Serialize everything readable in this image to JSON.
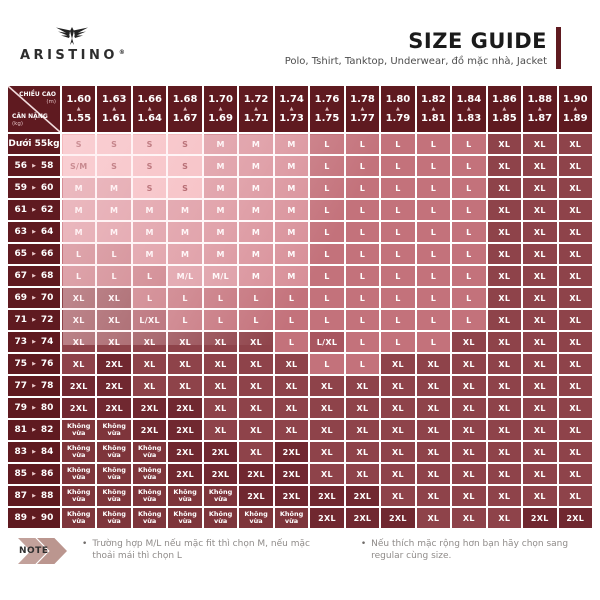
{
  "header": {
    "brand": "ARISTINO",
    "registered_mark": "®",
    "title": "SIZE GUIDE",
    "subtitle": "Polo, Tshirt, Tanktop, Underwear, đồ mặc nhà, Jacket"
  },
  "chart_data": {
    "type": "table",
    "title": "SIZE GUIDE",
    "corner": {
      "top_label": "CHIỀU CAO",
      "top_unit": "(m)",
      "bottom_label": "CÂN NẶNG",
      "bottom_unit": "(kg)"
    },
    "columns": [
      {
        "max": "1.60",
        "min": "1.55"
      },
      {
        "max": "1.63",
        "min": "1.61"
      },
      {
        "max": "1.66",
        "min": "1.64"
      },
      {
        "max": "1.68",
        "min": "1.67"
      },
      {
        "max": "1.70",
        "min": "1.69"
      },
      {
        "max": "1.72",
        "min": "1.71"
      },
      {
        "max": "1.74",
        "min": "1.73"
      },
      {
        "max": "1.76",
        "min": "1.75"
      },
      {
        "max": "1.78",
        "min": "1.77"
      },
      {
        "max": "1.80",
        "min": "1.79"
      },
      {
        "max": "1.82",
        "min": "1.81"
      },
      {
        "max": "1.84",
        "min": "1.83"
      },
      {
        "max": "1.86",
        "min": "1.85"
      },
      {
        "max": "1.88",
        "min": "1.87"
      },
      {
        "max": "1.90",
        "min": "1.89"
      }
    ],
    "rows": [
      {
        "label": {
          "text": "Dưới 55kg"
        },
        "cells": [
          "S",
          "S",
          "S",
          "S",
          "M",
          "M",
          "M",
          "L",
          "L",
          "L",
          "L",
          "L",
          "XL",
          "XL",
          "XL"
        ]
      },
      {
        "label": {
          "from": "56",
          "to": "58"
        },
        "cells": [
          "S/M",
          "S",
          "S",
          "S",
          "M",
          "M",
          "M",
          "L",
          "L",
          "L",
          "L",
          "L",
          "XL",
          "XL",
          "XL"
        ]
      },
      {
        "label": {
          "from": "59",
          "to": "60"
        },
        "cells": [
          "M",
          "M",
          "S",
          "S",
          "M",
          "M",
          "M",
          "L",
          "L",
          "L",
          "L",
          "L",
          "XL",
          "XL",
          "XL"
        ]
      },
      {
        "label": {
          "from": "61",
          "to": "62"
        },
        "cells": [
          "M",
          "M",
          "M",
          "M",
          "M",
          "M",
          "M",
          "L",
          "L",
          "L",
          "L",
          "L",
          "XL",
          "XL",
          "XL"
        ]
      },
      {
        "label": {
          "from": "63",
          "to": "64"
        },
        "cells": [
          "M",
          "M",
          "M",
          "M",
          "M",
          "M",
          "M",
          "L",
          "L",
          "L",
          "L",
          "L",
          "XL",
          "XL",
          "XL"
        ]
      },
      {
        "label": {
          "from": "65",
          "to": "66"
        },
        "cells": [
          "L",
          "L",
          "M",
          "M",
          "M",
          "M",
          "M",
          "L",
          "L",
          "L",
          "L",
          "L",
          "XL",
          "XL",
          "XL"
        ]
      },
      {
        "label": {
          "from": "67",
          "to": "68"
        },
        "cells": [
          "L",
          "L",
          "L",
          "M/L",
          "M/L",
          "M",
          "M",
          "L",
          "L",
          "L",
          "L",
          "L",
          "XL",
          "XL",
          "XL"
        ]
      },
      {
        "label": {
          "from": "69",
          "to": "70"
        },
        "cells": [
          "XL",
          "XL",
          "L",
          "L",
          "L",
          "L",
          "L",
          "L",
          "L",
          "L",
          "L",
          "L",
          "XL",
          "XL",
          "XL"
        ]
      },
      {
        "label": {
          "from": "71",
          "to": "72"
        },
        "cells": [
          "XL",
          "XL",
          "L/XL",
          "L",
          "L",
          "L",
          "L",
          "L",
          "L",
          "L",
          "L",
          "L",
          "XL",
          "XL",
          "XL"
        ]
      },
      {
        "label": {
          "from": "73",
          "to": "74"
        },
        "cells": [
          "XL",
          "XL",
          "XL",
          "XL",
          "XL",
          "XL",
          "L",
          "L/XL",
          "L",
          "L",
          "L",
          "XL",
          "XL",
          "XL",
          "XL"
        ]
      },
      {
        "label": {
          "from": "75",
          "to": "76"
        },
        "cells": [
          "XL",
          "2XL",
          "XL",
          "XL",
          "XL",
          "XL",
          "XL",
          "L",
          "L",
          "XL",
          "XL",
          "XL",
          "XL",
          "XL",
          "XL"
        ]
      },
      {
        "label": {
          "from": "77",
          "to": "78"
        },
        "cells": [
          "2XL",
          "2XL",
          "XL",
          "XL",
          "XL",
          "XL",
          "XL",
          "XL",
          "XL",
          "XL",
          "XL",
          "XL",
          "XL",
          "XL",
          "XL"
        ]
      },
      {
        "label": {
          "from": "79",
          "to": "80"
        },
        "cells": [
          "2XL",
          "2XL",
          "2XL",
          "2XL",
          "XL",
          "XL",
          "XL",
          "XL",
          "XL",
          "XL",
          "XL",
          "XL",
          "XL",
          "XL",
          "XL"
        ]
      },
      {
        "label": {
          "from": "81",
          "to": "82"
        },
        "cells": [
          "KV",
          "KV",
          "2XL",
          "2XL",
          "XL",
          "XL",
          "XL",
          "XL",
          "XL",
          "XL",
          "XL",
          "XL",
          "XL",
          "XL",
          "XL"
        ]
      },
      {
        "label": {
          "from": "83",
          "to": "84"
        },
        "cells": [
          "KV",
          "KV",
          "KV",
          "2XL",
          "2XL",
          "XL",
          "2XL",
          "XL",
          "XL",
          "XL",
          "XL",
          "XL",
          "XL",
          "XL",
          "XL"
        ]
      },
      {
        "label": {
          "from": "85",
          "to": "86"
        },
        "cells": [
          "KV",
          "KV",
          "KV",
          "2XL",
          "2XL",
          "2XL",
          "2XL",
          "XL",
          "XL",
          "XL",
          "XL",
          "XL",
          "XL",
          "XL",
          "XL"
        ]
      },
      {
        "label": {
          "from": "87",
          "to": "88"
        },
        "cells": [
          "KV",
          "KV",
          "KV",
          "KV",
          "KV",
          "2XL",
          "2XL",
          "2XL",
          "2XL",
          "XL",
          "XL",
          "XL",
          "XL",
          "XL",
          "XL"
        ]
      },
      {
        "label": {
          "from": "89",
          "to": "90"
        },
        "cells": [
          "KV",
          "KV",
          "KV",
          "KV",
          "KV",
          "KV",
          "KV",
          "2XL",
          "2XL",
          "2XL",
          "XL",
          "XL",
          "XL",
          "2XL",
          "2XL"
        ]
      }
    ]
  },
  "sizes": {
    "S": {
      "label": "S",
      "bg": "#f3b8bc",
      "fg": "#93333b"
    },
    "S/M": {
      "label": "S/M",
      "bg": "#f3b8bc",
      "fg": "#93333b"
    },
    "M": {
      "label": "M",
      "bg": "#d78f98",
      "fg": "#ffffff"
    },
    "M/L": {
      "label": "M/L",
      "bg": "#da98a1",
      "fg": "#ffffff"
    },
    "L": {
      "label": "L",
      "bg": "#c3727b",
      "fg": "#ffffff"
    },
    "L/XL": {
      "label": "L/XL",
      "bg": "#a85660",
      "fg": "#ffffff"
    },
    "XL": {
      "label": "XL",
      "bg": "#8e434a",
      "fg": "#ffffff"
    },
    "2XL": {
      "label": "2XL",
      "bg": "#702830",
      "fg": "#ffffff"
    },
    "KV": {
      "label": "Không vừa",
      "lines": [
        "Không",
        "vừa"
      ],
      "bg": "#7e353b",
      "fg": "#ffffff"
    }
  },
  "glyphs": {
    "up_triangle": "▲",
    "right_triangle": "▶"
  },
  "colors": {
    "maroon_dark": "#5f1a20",
    "accent_bar": "#5f1a20",
    "triangle_tint": "#dcb6b9",
    "row_triangle_tint": "#ecc9cb",
    "note_chevron": "#c2a19b",
    "note_chevron2": "#bb968f"
  },
  "note": {
    "label": "NOTE",
    "bullet_char": "•",
    "bullets": [
      "Trường hợp M/L nếu mặc fit thì chọn M, nếu mặc thoải mái thì chọn L",
      "Nếu thích mặc rộng hơn bạn hãy chọn sang regular cùng size."
    ]
  }
}
